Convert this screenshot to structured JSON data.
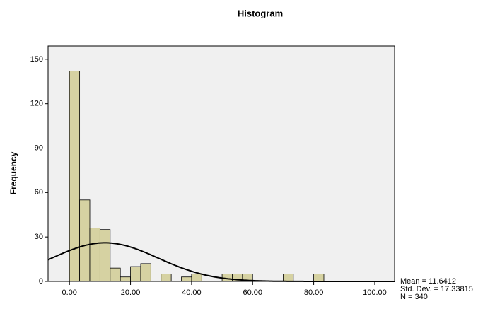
{
  "chart_data": {
    "type": "histogram",
    "title": "Histogram",
    "y_label": "Frequency",
    "bins": [
      0,
      3.3333,
      6.6667,
      10,
      13.3333,
      16.6667,
      20,
      23.3333,
      26.6667,
      30,
      33.3333,
      36.6667,
      40,
      43.3333,
      46.6667,
      50,
      53.3333,
      56.6667,
      60,
      63.3333,
      66.6667,
      70,
      73.3333,
      76.6667,
      80,
      83.3333
    ],
    "counts": [
      142,
      55,
      36,
      35,
      9,
      3,
      10,
      12,
      0,
      5,
      0,
      3,
      5,
      0,
      0,
      5,
      5,
      5,
      0,
      0,
      0,
      5,
      0,
      0,
      5
    ],
    "color": "#d6d2a2",
    "xlim": [
      -7,
      106.5
    ],
    "ylim": [
      0,
      159
    ],
    "xticks": [
      {
        "value": 0,
        "label": "0.00"
      },
      {
        "value": 20,
        "label": "20.00"
      },
      {
        "value": 40,
        "label": "40.00"
      },
      {
        "value": 60,
        "label": "60.00"
      },
      {
        "value": 80,
        "label": "80.00"
      },
      {
        "value": 100,
        "label": "100.00"
      }
    ],
    "yticks": [
      0,
      30,
      60,
      90,
      120,
      150
    ],
    "normal_curve": {
      "mean": {
        "value": 11.6412,
        "label": "Mean = 11.6412"
      },
      "std": {
        "value": 17.33815,
        "label": "Std. Dev. = 17.33815"
      },
      "n": {
        "value": 340,
        "label": "N = 340"
      }
    }
  }
}
